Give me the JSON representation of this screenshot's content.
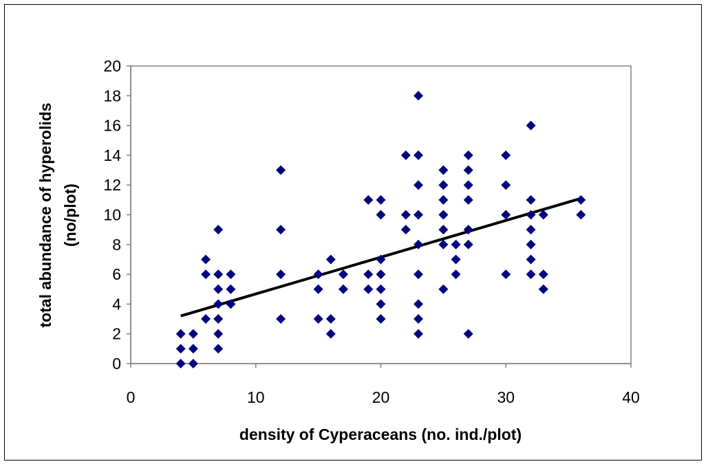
{
  "chart_data": {
    "type": "scatter",
    "title": "",
    "xlabel": "density of Cyperaceans (no. ind./plot)",
    "ylabel_lines": [
      "total abundance of hyperolids",
      "(no/plot)"
    ],
    "xlim": [
      0,
      40
    ],
    "ylim": [
      0,
      20
    ],
    "xticks": [
      0,
      10,
      20,
      30,
      40
    ],
    "yticks": [
      0,
      2,
      4,
      6,
      8,
      10,
      12,
      14,
      16,
      18,
      20
    ],
    "grid": false,
    "legend": "none",
    "marker": "diamond",
    "marker_color": "#000080",
    "trendline_color": "#000000",
    "trendline": {
      "x": [
        4,
        36
      ],
      "y": [
        3.2,
        11.1
      ]
    },
    "points": [
      {
        "x": 4,
        "y": 0
      },
      {
        "x": 4,
        "y": 1
      },
      {
        "x": 4,
        "y": 2
      },
      {
        "x": 5,
        "y": 0
      },
      {
        "x": 5,
        "y": 1
      },
      {
        "x": 5,
        "y": 2
      },
      {
        "x": 6,
        "y": 3
      },
      {
        "x": 6,
        "y": 6
      },
      {
        "x": 6,
        "y": 7
      },
      {
        "x": 7,
        "y": 1
      },
      {
        "x": 7,
        "y": 2
      },
      {
        "x": 7,
        "y": 3
      },
      {
        "x": 7,
        "y": 4
      },
      {
        "x": 7,
        "y": 5
      },
      {
        "x": 7,
        "y": 6
      },
      {
        "x": 7,
        "y": 9
      },
      {
        "x": 8,
        "y": 4
      },
      {
        "x": 8,
        "y": 5
      },
      {
        "x": 8,
        "y": 6
      },
      {
        "x": 12,
        "y": 3
      },
      {
        "x": 12,
        "y": 6
      },
      {
        "x": 12,
        "y": 9
      },
      {
        "x": 12,
        "y": 13
      },
      {
        "x": 15,
        "y": 3
      },
      {
        "x": 15,
        "y": 5
      },
      {
        "x": 15,
        "y": 6
      },
      {
        "x": 16,
        "y": 2
      },
      {
        "x": 16,
        "y": 3
      },
      {
        "x": 16,
        "y": 7
      },
      {
        "x": 17,
        "y": 5
      },
      {
        "x": 17,
        "y": 6
      },
      {
        "x": 19,
        "y": 5
      },
      {
        "x": 19,
        "y": 6
      },
      {
        "x": 19,
        "y": 11
      },
      {
        "x": 20,
        "y": 3
      },
      {
        "x": 20,
        "y": 4
      },
      {
        "x": 20,
        "y": 5
      },
      {
        "x": 20,
        "y": 6
      },
      {
        "x": 20,
        "y": 7
      },
      {
        "x": 20,
        "y": 10
      },
      {
        "x": 20,
        "y": 11
      },
      {
        "x": 22,
        "y": 9
      },
      {
        "x": 22,
        "y": 10
      },
      {
        "x": 22,
        "y": 14
      },
      {
        "x": 23,
        "y": 2
      },
      {
        "x": 23,
        "y": 3
      },
      {
        "x": 23,
        "y": 4
      },
      {
        "x": 23,
        "y": 6
      },
      {
        "x": 23,
        "y": 8
      },
      {
        "x": 23,
        "y": 10
      },
      {
        "x": 23,
        "y": 12
      },
      {
        "x": 23,
        "y": 14
      },
      {
        "x": 23,
        "y": 18
      },
      {
        "x": 25,
        "y": 5
      },
      {
        "x": 25,
        "y": 8
      },
      {
        "x": 25,
        "y": 9
      },
      {
        "x": 25,
        "y": 10
      },
      {
        "x": 25,
        "y": 11
      },
      {
        "x": 25,
        "y": 12
      },
      {
        "x": 25,
        "y": 13
      },
      {
        "x": 26,
        "y": 6
      },
      {
        "x": 26,
        "y": 7
      },
      {
        "x": 26,
        "y": 8
      },
      {
        "x": 27,
        "y": 2
      },
      {
        "x": 27,
        "y": 8
      },
      {
        "x": 27,
        "y": 9
      },
      {
        "x": 27,
        "y": 11
      },
      {
        "x": 27,
        "y": 12
      },
      {
        "x": 27,
        "y": 13
      },
      {
        "x": 27,
        "y": 14
      },
      {
        "x": 30,
        "y": 6
      },
      {
        "x": 30,
        "y": 10
      },
      {
        "x": 30,
        "y": 12
      },
      {
        "x": 30,
        "y": 14
      },
      {
        "x": 32,
        "y": 6
      },
      {
        "x": 32,
        "y": 7
      },
      {
        "x": 32,
        "y": 8
      },
      {
        "x": 32,
        "y": 9
      },
      {
        "x": 32,
        "y": 10
      },
      {
        "x": 32,
        "y": 11
      },
      {
        "x": 32,
        "y": 16
      },
      {
        "x": 33,
        "y": 5
      },
      {
        "x": 33,
        "y": 6
      },
      {
        "x": 33,
        "y": 10
      },
      {
        "x": 36,
        "y": 10
      },
      {
        "x": 36,
        "y": 11
      }
    ]
  }
}
